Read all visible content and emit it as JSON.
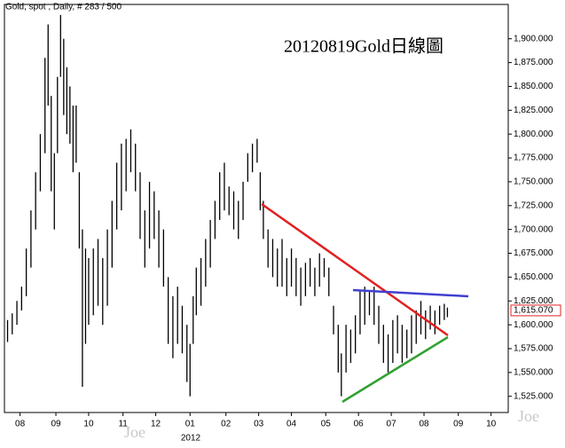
{
  "header": "Gold, spot , Daily, # 283 / 500",
  "watermark": "Joe",
  "chart_data": {
    "type": "hilo",
    "title": "20120819Gold日線圖",
    "year_label": "2012",
    "xlim": [
      -2,
      321
    ],
    "ylim": [
      1508,
      1936
    ],
    "xticks": [
      {
        "value": 8,
        "label": "08"
      },
      {
        "value": 31,
        "label": "09"
      },
      {
        "value": 52,
        "label": "10"
      },
      {
        "value": 74,
        "label": "11"
      },
      {
        "value": 95,
        "label": "12"
      },
      {
        "value": 117,
        "label": "01"
      },
      {
        "value": 140,
        "label": "02"
      },
      {
        "value": 161,
        "label": "03"
      },
      {
        "value": 182,
        "label": "04"
      },
      {
        "value": 204,
        "label": "05"
      },
      {
        "value": 225,
        "label": "06"
      },
      {
        "value": 246,
        "label": "07"
      },
      {
        "value": 267,
        "label": "08"
      },
      {
        "value": 289,
        "label": "09"
      },
      {
        "value": 310,
        "label": "10"
      }
    ],
    "yticks": [
      {
        "value": 1525,
        "label": "1,525.000"
      },
      {
        "value": 1550,
        "label": "1,550.000"
      },
      {
        "value": 1575,
        "label": "1,575.000"
      },
      {
        "value": 1600,
        "label": "1,600.000"
      },
      {
        "value": 1625,
        "label": "1,625.000"
      },
      {
        "value": 1650,
        "label": "1,650.000"
      },
      {
        "value": 1675,
        "label": "1,675.000"
      },
      {
        "value": 1700,
        "label": "1,700.000"
      },
      {
        "value": 1725,
        "label": "1,725.000"
      },
      {
        "value": 1750,
        "label": "1,750.000"
      },
      {
        "value": 1775,
        "label": "1,775.000"
      },
      {
        "value": 1800,
        "label": "1,800.000"
      },
      {
        "value": 1825,
        "label": "1,825.000"
      },
      {
        "value": 1850,
        "label": "1,850.000"
      },
      {
        "value": 1875,
        "label": "1,875.000"
      },
      {
        "value": 1900,
        "label": "1,900.000"
      }
    ],
    "last_value": {
      "value": 1615.07,
      "label": "1,615.070"
    },
    "last_color": "#e02020",
    "series": [
      {
        "color": "#000000",
        "x": [
          0,
          3,
          6,
          9,
          12,
          15,
          18,
          21,
          24,
          26,
          28,
          30,
          32,
          34,
          36,
          38,
          40,
          42,
          44,
          46,
          48,
          50,
          52,
          55,
          58,
          61,
          64,
          67,
          70,
          73,
          76,
          79,
          82,
          85,
          88,
          91,
          94,
          97,
          100,
          103,
          106,
          109,
          112,
          115,
          117,
          119,
          121,
          124,
          127,
          130,
          133,
          136,
          139,
          142,
          145,
          148,
          151,
          154,
          157,
          160,
          162,
          164,
          167,
          170,
          173,
          176,
          179,
          182,
          185,
          188,
          191,
          194,
          197,
          200,
          203,
          206,
          209,
          212,
          214,
          217,
          220,
          223,
          226,
          229,
          232,
          235,
          238,
          241,
          244,
          247,
          250,
          253,
          256,
          259,
          262,
          265,
          268,
          271,
          274,
          277,
          280,
          282
        ],
        "low": [
          1582,
          1590,
          1600,
          1615,
          1630,
          1660,
          1700,
          1740,
          1780,
          1830,
          1740,
          1700,
          1780,
          1860,
          1820,
          1800,
          1790,
          1760,
          1770,
          1680,
          1535,
          1580,
          1600,
          1610,
          1620,
          1600,
          1620,
          1660,
          1700,
          1720,
          1740,
          1760,
          1740,
          1690,
          1660,
          1680,
          1690,
          1660,
          1640,
          1580,
          1565,
          1580,
          1570,
          1540,
          1525,
          1580,
          1610,
          1620,
          1640,
          1660,
          1690,
          1710,
          1720,
          1715,
          1700,
          1690,
          1710,
          1750,
          1760,
          1770,
          1720,
          1690,
          1660,
          1650,
          1640,
          1640,
          1630,
          1640,
          1630,
          1620,
          1630,
          1640,
          1630,
          1640,
          1650,
          1630,
          1590,
          1550,
          1525,
          1550,
          1560,
          1570,
          1590,
          1600,
          1610,
          1600,
          1580,
          1560,
          1550,
          1560,
          1570,
          1560,
          1565,
          1570,
          1580,
          1590,
          1585,
          1595,
          1590,
          1600,
          1605,
          1608
        ],
        "high": [
          1605,
          1612,
          1625,
          1640,
          1680,
          1720,
          1760,
          1800,
          1880,
          1915,
          1840,
          1780,
          1860,
          1925,
          1900,
          1870,
          1850,
          1830,
          1830,
          1760,
          1700,
          1680,
          1670,
          1680,
          1690,
          1670,
          1700,
          1730,
          1770,
          1790,
          1795,
          1805,
          1790,
          1760,
          1720,
          1750,
          1740,
          1720,
          1700,
          1650,
          1630,
          1640,
          1620,
          1600,
          1580,
          1630,
          1660,
          1670,
          1690,
          1710,
          1730,
          1760,
          1770,
          1745,
          1740,
          1730,
          1750,
          1780,
          1790,
          1795,
          1760,
          1730,
          1700,
          1690,
          1680,
          1690,
          1670,
          1680,
          1670,
          1660,
          1665,
          1670,
          1660,
          1675,
          1670,
          1660,
          1620,
          1600,
          1570,
          1600,
          1595,
          1610,
          1635,
          1640,
          1635,
          1640,
          1620,
          1600,
          1590,
          1605,
          1610,
          1600,
          1595,
          1610,
          1615,
          1625,
          1615,
          1620,
          1615,
          1620,
          1622,
          1618
        ]
      }
    ]
  }
}
